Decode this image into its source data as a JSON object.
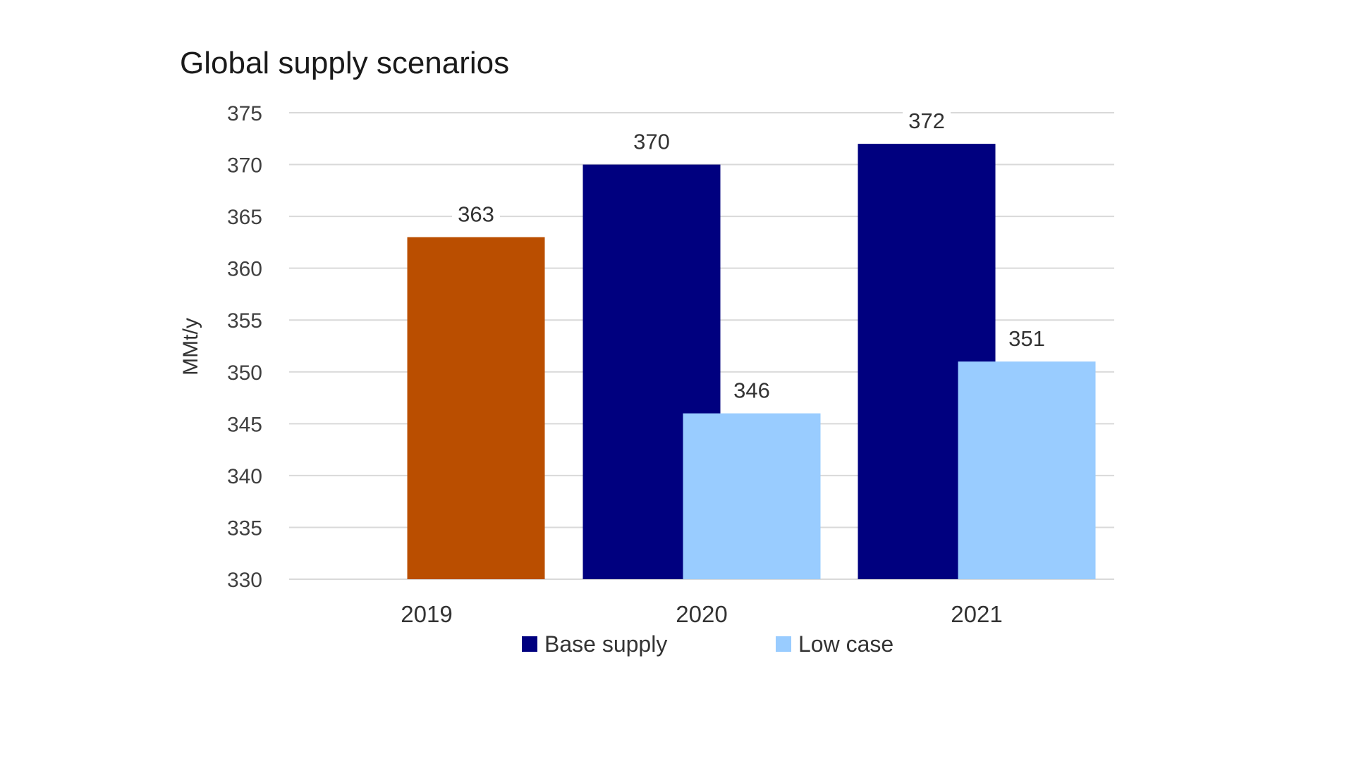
{
  "chart_data": {
    "type": "bar",
    "title": "Global supply scenarios",
    "xlabel": "",
    "ylabel": "MMt/y",
    "ylim": [
      330,
      375
    ],
    "yticks": [
      330,
      335,
      340,
      345,
      350,
      355,
      360,
      365,
      370,
      375
    ],
    "grid": true,
    "legend_position": "bottom",
    "categories": [
      "2019",
      "2020",
      "2021"
    ],
    "series": [
      {
        "values": [
          363,
          null,
          null
        ],
        "color": "#BA4E00"
      },
      {
        "name": "Base supply",
        "values": [
          null,
          370,
          372
        ],
        "color": "#00007F"
      },
      {
        "name": "Low case",
        "values": [
          null,
          346,
          351
        ],
        "color": "#99CCFF"
      }
    ]
  }
}
